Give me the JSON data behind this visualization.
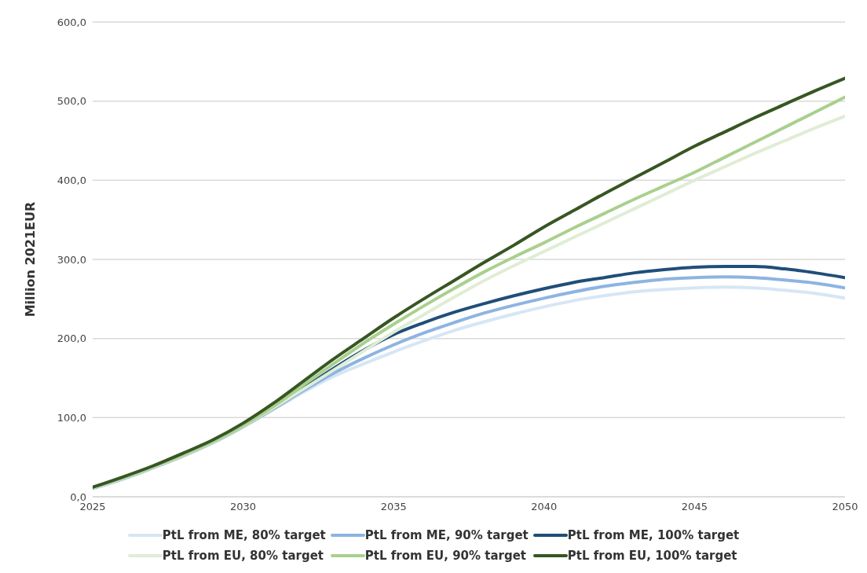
{
  "chart_data": {
    "type": "line",
    "ylabel": "Million 2021EUR",
    "x": [
      2025,
      2026,
      2027,
      2028,
      2029,
      2030,
      2031,
      2032,
      2033,
      2034,
      2035,
      2036,
      2037,
      2038,
      2039,
      2040,
      2041,
      2042,
      2043,
      2044,
      2045,
      2046,
      2047,
      2048,
      2049,
      2050
    ],
    "xlim": [
      2025,
      2050
    ],
    "xticks": [
      2025,
      2030,
      2035,
      2040,
      2045,
      2050
    ],
    "ylim": [
      0,
      600
    ],
    "yticks": [
      {
        "value": 0,
        "label": "0,0"
      },
      {
        "value": 100,
        "label": "100,0"
      },
      {
        "value": 200,
        "label": "200,0"
      },
      {
        "value": 300,
        "label": "300,0"
      },
      {
        "value": 400,
        "label": "400,0"
      },
      {
        "value": 500,
        "label": "500,0"
      },
      {
        "value": 600,
        "label": "600,0"
      }
    ],
    "grid": "y",
    "legend": "bottom",
    "marker": "none",
    "line_style": "solid",
    "series": [
      {
        "name": "PtL from ME, 80% target",
        "color": "#d6e6f5",
        "values": [
          10,
          22,
          36,
          51,
          68,
          88,
          110,
          132,
          152,
          168,
          183,
          197,
          210,
          221,
          231,
          240,
          248,
          254,
          259,
          262,
          264,
          265,
          264,
          261,
          257,
          251
        ]
      },
      {
        "name": "PtL from ME, 90% target",
        "color": "#8db4e2",
        "values": [
          11,
          23,
          37,
          52,
          69,
          89,
          111,
          134,
          156,
          175,
          192,
          207,
          220,
          232,
          242,
          251,
          259,
          266,
          271,
          275,
          277,
          278,
          277,
          274,
          270,
          264
        ]
      },
      {
        "name": "PtL from ME, 100% target",
        "color": "#1f4e79",
        "values": [
          11,
          23,
          37,
          52,
          69,
          89,
          112,
          137,
          162,
          185,
          205,
          220,
          233,
          244,
          254,
          263,
          271,
          277,
          283,
          287,
          290,
          291,
          291,
          288,
          283,
          277
        ]
      },
      {
        "name": "PtL from EU, 80% target",
        "color": "#dfedd5",
        "values": [
          11,
          23,
          37,
          52,
          69,
          89,
          112,
          136,
          160,
          184,
          208,
          230,
          252,
          273,
          292,
          310,
          328,
          346,
          364,
          382,
          400,
          417,
          434,
          450,
          466,
          481
        ]
      },
      {
        "name": "PtL from EU, 90% target",
        "color": "#a9d08e",
        "values": [
          12,
          24,
          38,
          53,
          70,
          90,
          114,
          141,
          168,
          194,
          218,
          241,
          263,
          284,
          303,
          321,
          340,
          358,
          376,
          393,
          410,
          429,
          448,
          467,
          486,
          505
        ]
      },
      {
        "name": "PtL from EU, 100% target",
        "color": "#375623",
        "values": [
          12,
          25,
          39,
          55,
          72,
          93,
          118,
          146,
          174,
          200,
          226,
          250,
          273,
          296,
          318,
          341,
          362,
          383,
          403,
          423,
          443,
          461,
          479,
          496,
          513,
          529
        ]
      }
    ]
  }
}
